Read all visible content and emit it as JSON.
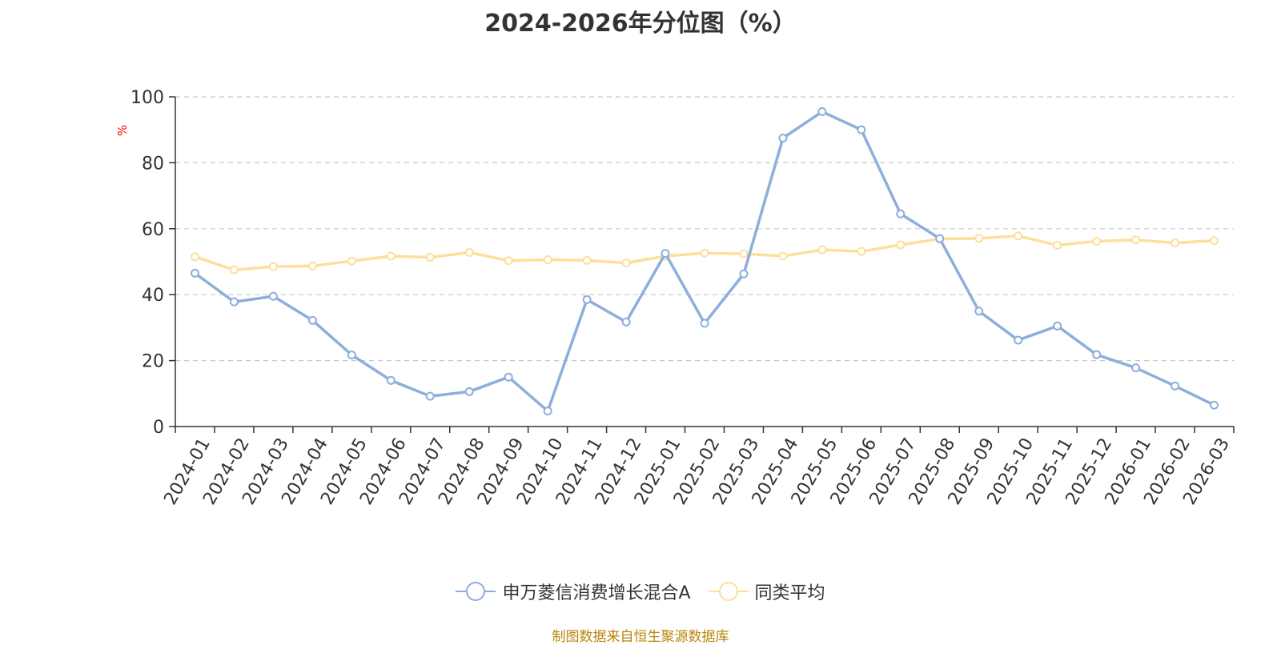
{
  "chart_data": {
    "type": "line",
    "title": "2024-2026年分位图（%）",
    "ylabel": "%",
    "xlabel": "",
    "ylim": [
      0,
      100
    ],
    "yticks": [
      0,
      20,
      40,
      60,
      80,
      100
    ],
    "grid": true,
    "legend_position": "bottom",
    "categories": [
      "2024-01",
      "2024-02",
      "2024-03",
      "2024-04",
      "2024-05",
      "2024-06",
      "2024-07",
      "2024-08",
      "2024-09",
      "2024-10",
      "2024-11",
      "2024-12",
      "2025-01",
      "2025-02",
      "2025-03",
      "2025-04",
      "2025-05",
      "2025-06",
      "2025-07",
      "2025-08",
      "2025-09",
      "2025-10",
      "2025-11",
      "2025-12",
      "2026-01",
      "2026-02",
      "2026-03"
    ],
    "series": [
      {
        "name": "申万菱信消费增长混合A",
        "color": "#8eaedb",
        "values": [
          46.5,
          37.8,
          39.5,
          32.2,
          21.7,
          14.0,
          9.2,
          10.6,
          15.0,
          4.7,
          38.5,
          31.7,
          52.5,
          31.3,
          46.3,
          87.5,
          95.5,
          90.0,
          64.5,
          57.0,
          35.0,
          26.2,
          30.5,
          21.8,
          17.8,
          12.3,
          6.5
        ]
      },
      {
        "name": "同类平均",
        "color": "#fddf9c",
        "values": [
          51.5,
          47.5,
          48.5,
          48.7,
          50.2,
          51.7,
          51.3,
          52.8,
          50.3,
          50.6,
          50.4,
          49.6,
          51.7,
          52.6,
          52.4,
          51.7,
          53.6,
          53.1,
          55.1,
          56.9,
          57.1,
          57.8,
          55.0,
          56.2,
          56.6,
          55.7,
          56.4
        ]
      }
    ]
  },
  "footer": {
    "source": "制图数据来自恒生聚源数据库"
  }
}
